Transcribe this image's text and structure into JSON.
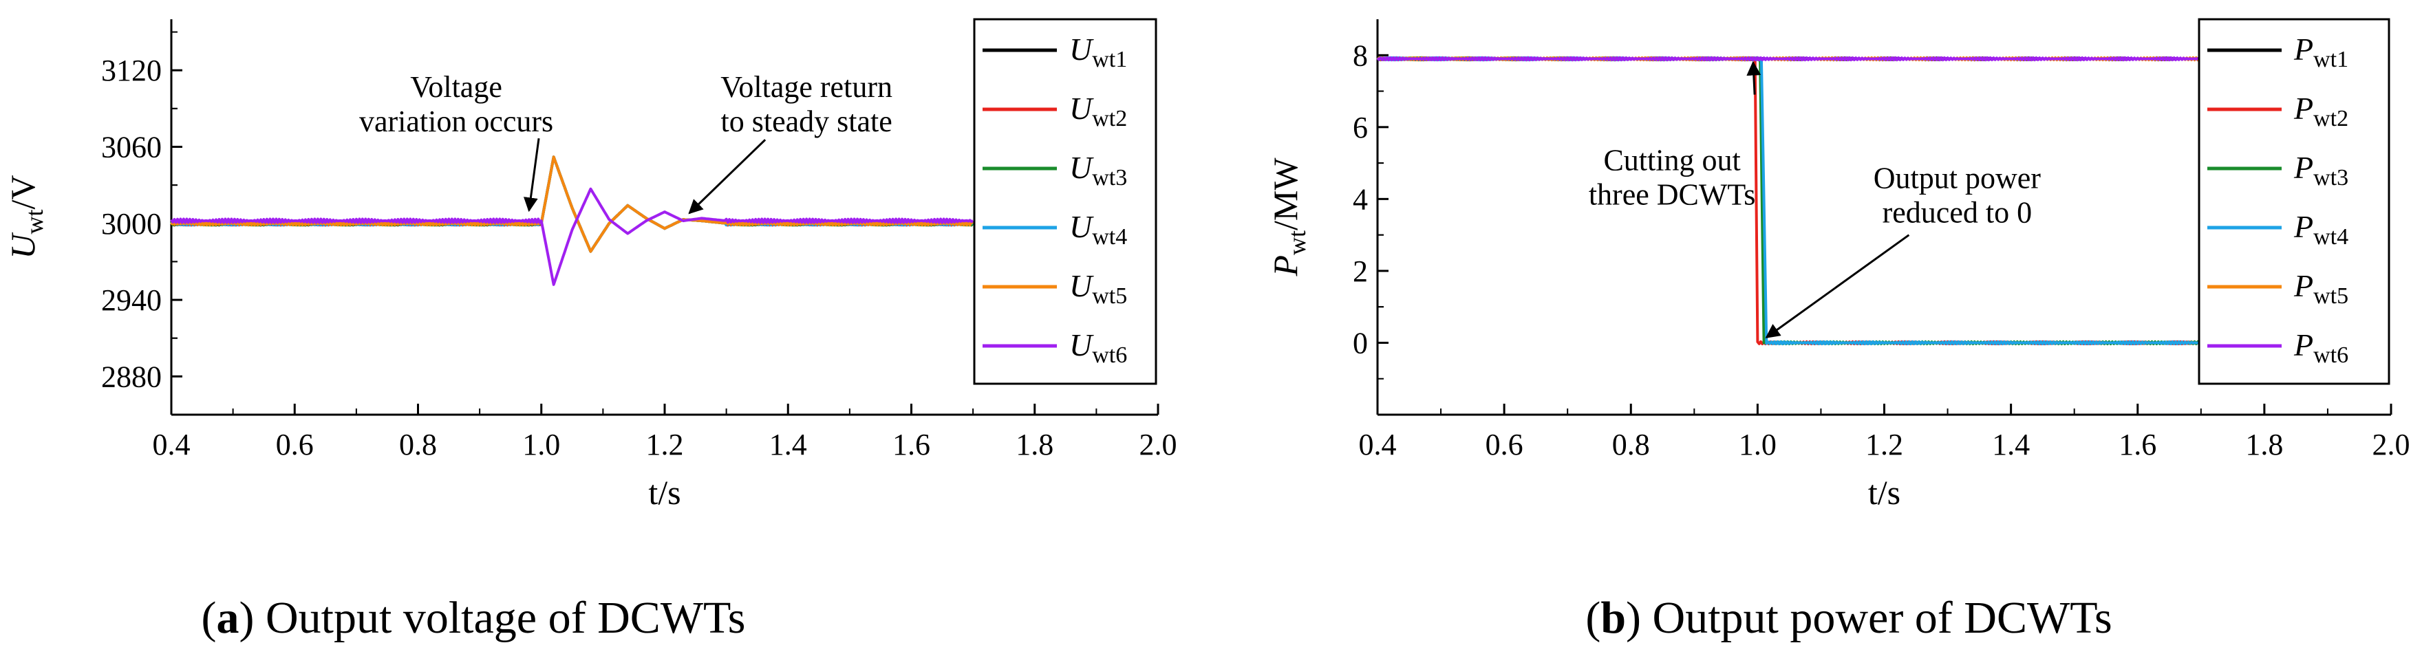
{
  "charts": [
    {
      "id": "a",
      "caption_letter": "a",
      "caption_text": "Output voltage of DCWTs",
      "ylabel_main": "U",
      "ylabel_sub": "wt",
      "ylabel_unit": "/V",
      "xlabel": "t/s",
      "annotations": [
        {
          "lines": [
            "Voltage",
            "variation occurs"
          ],
          "tx": 0.862,
          "ty": 3099,
          "ax": 0.98,
          "ay": 3010
        },
        {
          "lines": [
            "Voltage return",
            "to steady state"
          ],
          "tx": 1.43,
          "ty": 3099,
          "ax": 1.24,
          "ay": 3008
        }
      ]
    },
    {
      "id": "b",
      "caption_letter": "b",
      "caption_text": "Output power of DCWTs",
      "ylabel_main": "P",
      "ylabel_sub": "wt",
      "ylabel_unit": "/MW",
      "xlabel": "t/s",
      "annotations": [
        {
          "lines": [
            "Cutting out",
            "three DCWTs"
          ],
          "tx": 0.865,
          "ty": 4.8,
          "ax": 0.993,
          "ay": 7.8
        },
        {
          "lines": [
            "Output power",
            "reduced to 0"
          ],
          "tx": 1.315,
          "ty": 4.3,
          "ax": 1.014,
          "ay": 0.15
        }
      ]
    }
  ],
  "chart_data": [
    {
      "type": "line",
      "title": "(a) Output voltage of DCWTs",
      "xlabel": "t/s",
      "ylabel": "U_wt/V",
      "xlim": [
        0.4,
        2.0
      ],
      "ylim": [
        2850,
        3160
      ],
      "xticks": [
        "0.4",
        "0.6",
        "0.8",
        "1.0",
        "1.2",
        "1.4",
        "1.6",
        "1.8",
        "2.0"
      ],
      "yticks": [
        "2880",
        "2940",
        "3000",
        "3060",
        "3120"
      ],
      "legend_position": "top-right",
      "series": [
        {
          "name": "wt1",
          "color": "#000000",
          "x": [
            0.4,
            1.0,
            1.02,
            1.05,
            1.08,
            1.11,
            1.14,
            1.17,
            1.2,
            1.23,
            1.26,
            1.3,
            1.7
          ],
          "values": [
            3000,
            3000,
            3052,
            3012,
            2978,
            3000,
            3014,
            3004,
            2996,
            3003,
            3002,
            3000,
            3000
          ]
        },
        {
          "name": "wt2",
          "color": "#e8231d",
          "x": [
            0.4,
            1.0,
            1.02,
            1.05,
            1.08,
            1.11,
            1.14,
            1.17,
            1.2,
            1.23,
            1.26,
            1.3,
            1.7
          ],
          "values": [
            3000,
            3000,
            3052,
            3012,
            2978,
            3000,
            3014,
            3004,
            2996,
            3003,
            3002,
            3000,
            3000
          ]
        },
        {
          "name": "wt3",
          "color": "#1a8c2c",
          "x": [
            0.4,
            1.0,
            1.02,
            1.05,
            1.08,
            1.11,
            1.14,
            1.17,
            1.2,
            1.23,
            1.26,
            1.3,
            1.7
          ],
          "values": [
            3000,
            3000,
            3052,
            3012,
            2978,
            3000,
            3014,
            3004,
            2996,
            3003,
            3002,
            3000,
            3000
          ]
        },
        {
          "name": "wt4",
          "color": "#1ea3e6",
          "x": [
            0.4,
            1.0,
            1.02,
            1.05,
            1.08,
            1.11,
            1.14,
            1.17,
            1.2,
            1.23,
            1.26,
            1.3,
            1.7
          ],
          "values": [
            3000,
            3000,
            3052,
            3012,
            2978,
            3000,
            3014,
            3004,
            2996,
            3003,
            3002,
            3000,
            3000
          ]
        },
        {
          "name": "wt5",
          "color": "#f5870f",
          "x": [
            0.4,
            1.0,
            1.02,
            1.05,
            1.08,
            1.11,
            1.14,
            1.17,
            1.2,
            1.23,
            1.26,
            1.3,
            1.7
          ],
          "values": [
            3000,
            3000,
            3052,
            3012,
            2978,
            3000,
            3014,
            3004,
            2996,
            3003,
            3002,
            3000,
            3000
          ]
        },
        {
          "name": "wt6",
          "color": "#a020f0",
          "x": [
            0.4,
            1.0,
            1.02,
            1.05,
            1.08,
            1.11,
            1.14,
            1.17,
            1.2,
            1.23,
            1.26,
            1.3,
            1.7
          ],
          "values": [
            3002,
            3002,
            2952,
            2995,
            3027,
            3003,
            2992,
            3002,
            3009,
            3002,
            3004,
            3002,
            3002
          ]
        }
      ]
    },
    {
      "type": "line",
      "title": "(b) Output power of DCWTs",
      "xlabel": "t/s",
      "ylabel": "P_wt/MW",
      "xlim": [
        0.4,
        2.0
      ],
      "ylim": [
        -2,
        9
      ],
      "xticks": [
        "0.4",
        "0.6",
        "0.8",
        "1.0",
        "1.2",
        "1.4",
        "1.6",
        "1.8",
        "2.0"
      ],
      "yticks": [
        "0",
        "2",
        "4",
        "6",
        "8"
      ],
      "legend_position": "top-right",
      "series": [
        {
          "name": "wt1",
          "color": "#000000",
          "x": [
            0.4,
            1.7
          ],
          "values": [
            7.9,
            7.9
          ]
        },
        {
          "name": "wt2",
          "color": "#e8231d",
          "x": [
            0.4,
            0.996,
            1.0,
            1.7
          ],
          "values": [
            7.9,
            7.9,
            0,
            0
          ]
        },
        {
          "name": "wt3",
          "color": "#1a8c2c",
          "x": [
            0.4,
            1.004,
            1.01,
            1.7
          ],
          "values": [
            7.9,
            7.9,
            0,
            0
          ]
        },
        {
          "name": "wt4",
          "color": "#1ea3e6",
          "x": [
            0.4,
            1.006,
            1.014,
            1.7
          ],
          "values": [
            7.9,
            7.9,
            0,
            0
          ]
        },
        {
          "name": "wt5",
          "color": "#f5870f",
          "x": [
            0.4,
            1.7
          ],
          "values": [
            7.9,
            7.9
          ]
        },
        {
          "name": "wt6",
          "color": "#a020f0",
          "x": [
            0.4,
            1.7
          ],
          "values": [
            7.9,
            7.9
          ]
        }
      ]
    }
  ]
}
